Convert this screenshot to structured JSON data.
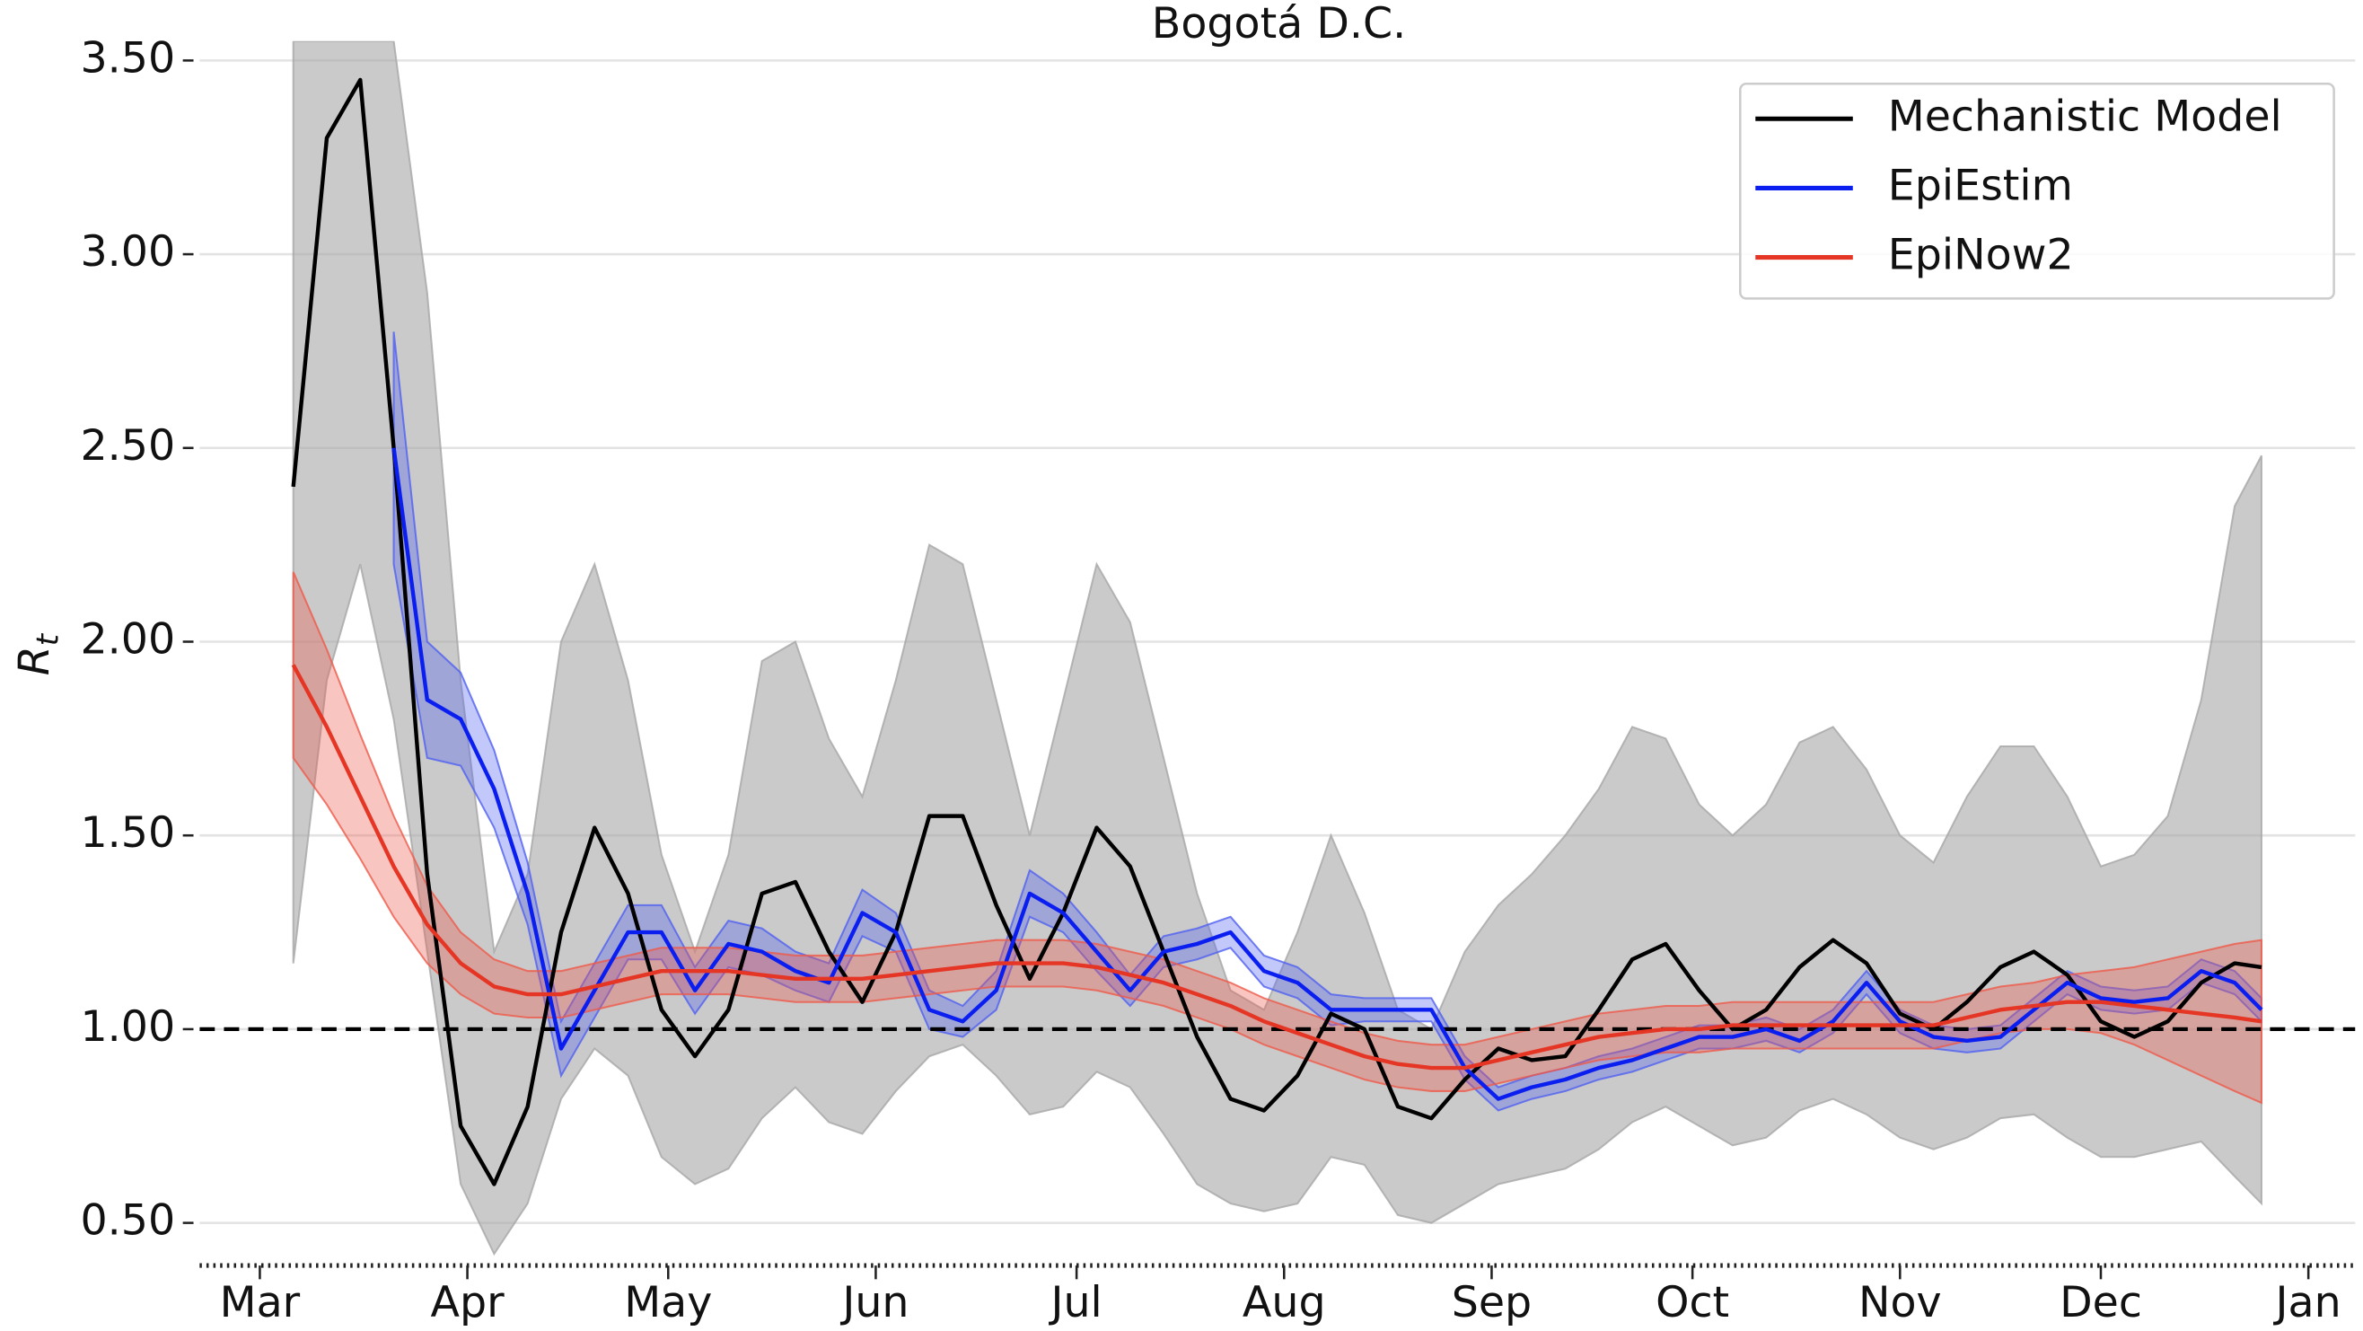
{
  "chart_data": {
    "type": "line",
    "title": "Bogotá D.C.",
    "ylabel": "R",
    "ylabel_subscript": "t",
    "xlim": [
      52,
      374
    ],
    "ylim": [
      0.39,
      3.55
    ],
    "xticks": [
      {
        "value": 61,
        "label": "Mar"
      },
      {
        "value": 92,
        "label": "Apr"
      },
      {
        "value": 122,
        "label": "May"
      },
      {
        "value": 153,
        "label": "Jun"
      },
      {
        "value": 183,
        "label": "Jul"
      },
      {
        "value": 214,
        "label": "Aug"
      },
      {
        "value": 245,
        "label": "Sep"
      },
      {
        "value": 275,
        "label": "Oct"
      },
      {
        "value": 306,
        "label": "Nov"
      },
      {
        "value": 336,
        "label": "Dec"
      },
      {
        "value": 367,
        "label": "Jan"
      }
    ],
    "yticks": [
      {
        "value": 0.5,
        "label": "0.50"
      },
      {
        "value": 1,
        "label": "1.00"
      },
      {
        "value": 1.5,
        "label": "1.50"
      },
      {
        "value": 2,
        "label": "2.00"
      },
      {
        "value": 2.5,
        "label": "2.50"
      },
      {
        "value": 3,
        "label": "3.00"
      },
      {
        "value": 3.5,
        "label": "3.50"
      }
    ],
    "grid": true,
    "hline": 1,
    "legend": "upper right",
    "x": [
      66,
      71,
      76,
      81,
      86,
      91,
      96,
      101,
      106,
      111,
      116,
      121,
      126,
      131,
      136,
      141,
      146,
      151,
      156,
      161,
      166,
      171,
      176,
      181,
      186,
      191,
      196,
      201,
      206,
      211,
      216,
      221,
      226,
      231,
      236,
      241,
      246,
      251,
      256,
      261,
      266,
      271,
      276,
      281,
      286,
      291,
      296,
      301,
      306,
      311,
      316,
      321,
      326,
      331,
      336,
      341,
      346,
      351,
      356,
      360
    ],
    "series": [
      {
        "name": "Mechanistic Model",
        "color": "#000000",
        "band_color": "#a6a6a6",
        "values": [
          2.4,
          3.3,
          3.45,
          2.5,
          1.4,
          0.75,
          0.6,
          0.8,
          1.25,
          1.52,
          1.35,
          1.05,
          0.93,
          1.05,
          1.35,
          1.38,
          1.2,
          1.07,
          1.25,
          1.55,
          1.55,
          1.32,
          1.13,
          1.3,
          1.52,
          1.42,
          1.2,
          0.98,
          0.82,
          0.79,
          0.88,
          1.04,
          1.0,
          0.8,
          0.77,
          0.87,
          0.95,
          0.92,
          0.93,
          1.05,
          1.18,
          1.22,
          1.1,
          1.0,
          1.05,
          1.16,
          1.23,
          1.17,
          1.04,
          1.0,
          1.07,
          1.16,
          1.2,
          1.14,
          1.02,
          0.98,
          1.02,
          1.12,
          1.17,
          1.16
        ],
        "lower": [
          1.17,
          1.9,
          2.2,
          1.8,
          1.2,
          0.6,
          0.42,
          0.55,
          0.82,
          0.95,
          0.88,
          0.67,
          0.6,
          0.64,
          0.77,
          0.85,
          0.76,
          0.73,
          0.84,
          0.93,
          0.96,
          0.88,
          0.78,
          0.8,
          0.89,
          0.85,
          0.73,
          0.6,
          0.55,
          0.53,
          0.55,
          0.67,
          0.65,
          0.52,
          0.5,
          0.55,
          0.6,
          0.62,
          0.64,
          0.69,
          0.76,
          0.8,
          0.75,
          0.7,
          0.72,
          0.79,
          0.82,
          0.78,
          0.72,
          0.69,
          0.72,
          0.77,
          0.78,
          0.72,
          0.67,
          0.67,
          0.69,
          0.71,
          0.62,
          0.55
        ],
        "upper": [
          3.55,
          3.55,
          3.55,
          3.55,
          2.9,
          1.9,
          1.2,
          1.4,
          2.0,
          2.2,
          1.9,
          1.45,
          1.2,
          1.45,
          1.95,
          2.0,
          1.75,
          1.6,
          1.9,
          2.25,
          2.2,
          1.85,
          1.5,
          1.85,
          2.2,
          2.05,
          1.7,
          1.35,
          1.1,
          1.05,
          1.25,
          1.5,
          1.3,
          1.05,
          1.0,
          1.2,
          1.32,
          1.4,
          1.5,
          1.62,
          1.78,
          1.75,
          1.58,
          1.5,
          1.58,
          1.74,
          1.78,
          1.67,
          1.5,
          1.43,
          1.6,
          1.73,
          1.73,
          1.6,
          1.42,
          1.45,
          1.55,
          1.85,
          2.35,
          2.48
        ]
      },
      {
        "name": "EpiEstim",
        "color": "#0a1ef0",
        "band_color": "#5060f0",
        "values": [
          null,
          null,
          null,
          2.5,
          1.85,
          1.8,
          1.62,
          1.35,
          0.95,
          1.1,
          1.25,
          1.25,
          1.1,
          1.22,
          1.2,
          1.15,
          1.12,
          1.3,
          1.25,
          1.05,
          1.02,
          1.1,
          1.35,
          1.3,
          1.2,
          1.1,
          1.2,
          1.22,
          1.25,
          1.15,
          1.12,
          1.05,
          1.05,
          1.05,
          1.05,
          0.9,
          0.82,
          0.85,
          0.87,
          0.9,
          0.92,
          0.95,
          0.98,
          0.98,
          1.0,
          0.97,
          1.02,
          1.12,
          1.02,
          0.98,
          0.97,
          0.98,
          1.05,
          1.12,
          1.08,
          1.07,
          1.08,
          1.15,
          1.12,
          1.05
        ],
        "lower": [
          null,
          null,
          null,
          2.2,
          1.7,
          1.68,
          1.52,
          1.27,
          0.88,
          1.03,
          1.18,
          1.18,
          1.04,
          1.16,
          1.14,
          1.1,
          1.07,
          1.24,
          1.2,
          1.0,
          0.98,
          1.05,
          1.29,
          1.25,
          1.15,
          1.06,
          1.16,
          1.18,
          1.21,
          1.11,
          1.08,
          1.01,
          1.02,
          1.02,
          1.02,
          0.87,
          0.79,
          0.82,
          0.84,
          0.87,
          0.89,
          0.92,
          0.95,
          0.95,
          0.97,
          0.94,
          0.99,
          1.09,
          0.99,
          0.95,
          0.94,
          0.95,
          1.02,
          1.09,
          1.05,
          1.04,
          1.05,
          1.12,
          1.09,
          1.02
        ],
        "upper": [
          null,
          null,
          null,
          2.8,
          2.0,
          1.92,
          1.72,
          1.43,
          1.02,
          1.17,
          1.32,
          1.32,
          1.16,
          1.28,
          1.26,
          1.2,
          1.17,
          1.36,
          1.3,
          1.1,
          1.06,
          1.15,
          1.41,
          1.35,
          1.25,
          1.14,
          1.24,
          1.26,
          1.29,
          1.19,
          1.16,
          1.09,
          1.08,
          1.08,
          1.08,
          0.93,
          0.85,
          0.88,
          0.9,
          0.93,
          0.95,
          0.98,
          1.01,
          1.01,
          1.03,
          1.0,
          1.05,
          1.15,
          1.05,
          1.01,
          1.0,
          1.01,
          1.08,
          1.15,
          1.11,
          1.1,
          1.11,
          1.18,
          1.15,
          1.08
        ]
      },
      {
        "name": "EpiNow2",
        "color": "#e53524",
        "band_color": "#ee5a4a",
        "values": [
          1.94,
          1.78,
          1.6,
          1.42,
          1.27,
          1.17,
          1.11,
          1.09,
          1.09,
          1.11,
          1.13,
          1.15,
          1.15,
          1.15,
          1.14,
          1.13,
          1.13,
          1.13,
          1.14,
          1.15,
          1.16,
          1.17,
          1.17,
          1.17,
          1.16,
          1.14,
          1.12,
          1.09,
          1.06,
          1.02,
          0.99,
          0.96,
          0.93,
          0.91,
          0.9,
          0.9,
          0.92,
          0.94,
          0.96,
          0.98,
          0.99,
          1.0,
          1.0,
          1.01,
          1.01,
          1.01,
          1.01,
          1.01,
          1.01,
          1.01,
          1.03,
          1.05,
          1.06,
          1.07,
          1.07,
          1.06,
          1.05,
          1.04,
          1.03,
          1.02
        ],
        "lower": [
          1.7,
          1.58,
          1.44,
          1.29,
          1.17,
          1.09,
          1.04,
          1.03,
          1.03,
          1.05,
          1.07,
          1.09,
          1.09,
          1.09,
          1.08,
          1.07,
          1.07,
          1.07,
          1.08,
          1.09,
          1.1,
          1.11,
          1.11,
          1.11,
          1.1,
          1.08,
          1.06,
          1.03,
          1.0,
          0.96,
          0.93,
          0.9,
          0.87,
          0.85,
          0.84,
          0.84,
          0.86,
          0.88,
          0.9,
          0.92,
          0.93,
          0.94,
          0.94,
          0.95,
          0.95,
          0.95,
          0.95,
          0.95,
          0.95,
          0.95,
          0.97,
          0.99,
          1.0,
          1.0,
          0.99,
          0.96,
          0.92,
          0.88,
          0.84,
          0.81
        ],
        "upper": [
          2.18,
          1.98,
          1.76,
          1.55,
          1.37,
          1.25,
          1.18,
          1.15,
          1.15,
          1.17,
          1.19,
          1.21,
          1.21,
          1.21,
          1.2,
          1.19,
          1.19,
          1.19,
          1.2,
          1.21,
          1.22,
          1.23,
          1.23,
          1.23,
          1.22,
          1.2,
          1.18,
          1.15,
          1.12,
          1.08,
          1.05,
          1.02,
          0.99,
          0.97,
          0.96,
          0.96,
          0.98,
          1.0,
          1.02,
          1.04,
          1.05,
          1.06,
          1.06,
          1.07,
          1.07,
          1.07,
          1.07,
          1.07,
          1.07,
          1.07,
          1.09,
          1.11,
          1.12,
          1.14,
          1.15,
          1.16,
          1.18,
          1.2,
          1.22,
          1.23
        ]
      }
    ]
  }
}
